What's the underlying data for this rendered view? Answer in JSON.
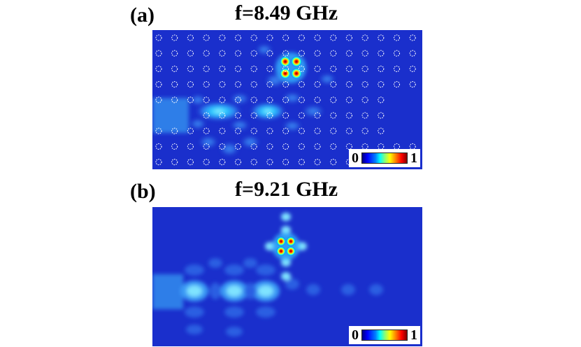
{
  "panels": [
    {
      "letter": "(a)",
      "frequency": "f=8.49 GHz",
      "colorbar_min": "0",
      "colorbar_max": "1",
      "rods_visible": true
    },
    {
      "letter": "(b)",
      "frequency": "f=9.21 GHz",
      "colorbar_min": "0",
      "colorbar_max": "1",
      "rods_visible": false
    }
  ],
  "colors": {
    "background_field": "#1a2fcc",
    "colormap": [
      "#00007f",
      "#0000ff",
      "#00ffff",
      "#ffff00",
      "#ff0000",
      "#800000"
    ]
  }
}
